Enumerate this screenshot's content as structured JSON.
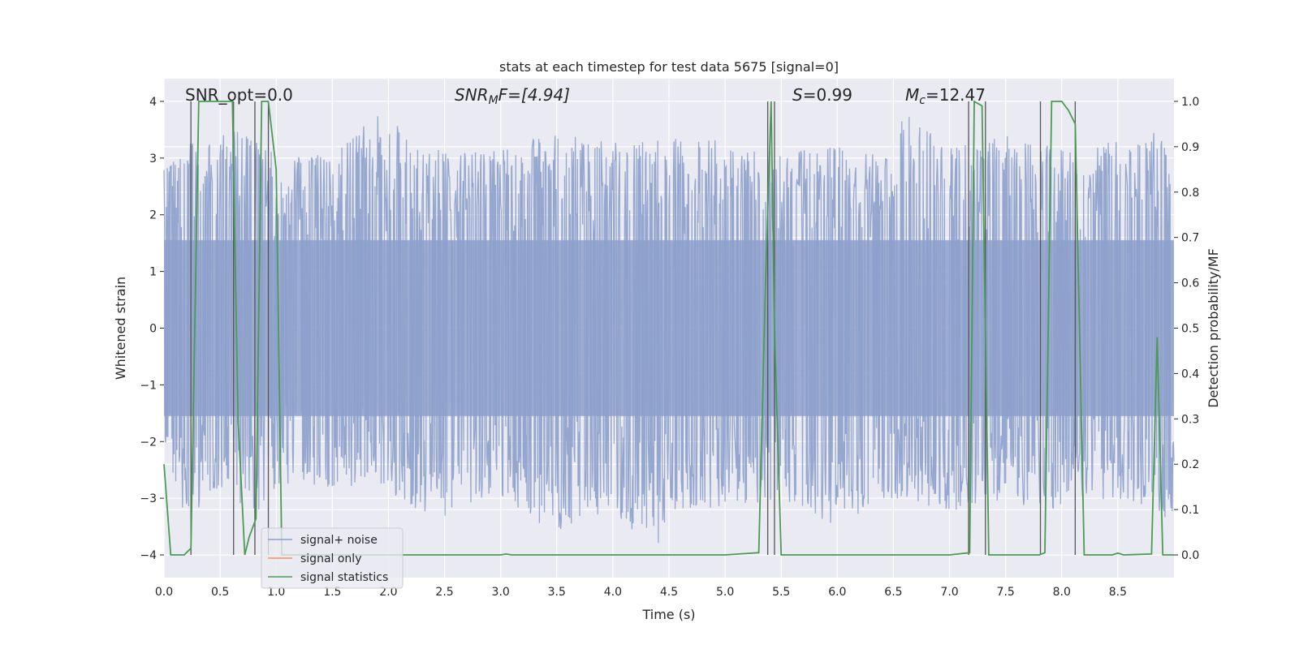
{
  "chart_data": {
    "type": "line",
    "title": "stats at each timestep for test data 5675 [signal=0]",
    "xlabel": "Time (s)",
    "ylabel": "Whitened strain",
    "y2label": "Detection probability/MF",
    "xlim": [
      0,
      9.0
    ],
    "ylim": [
      -4.4,
      4.4
    ],
    "y2lim": [
      -0.05,
      1.05
    ],
    "xticks": [
      "0.0",
      "0.5",
      "1.0",
      "1.5",
      "2.0",
      "2.5",
      "3.0",
      "3.5",
      "4.0",
      "4.5",
      "5.0",
      "5.5",
      "6.0",
      "6.5",
      "7.0",
      "7.5",
      "8.0",
      "8.5"
    ],
    "xtick_values": [
      0,
      0.5,
      1,
      1.5,
      2,
      2.5,
      3,
      3.5,
      4,
      4.5,
      5,
      5.5,
      6,
      6.5,
      7,
      7.5,
      8,
      8.5
    ],
    "yticks": [
      "−4",
      "−3",
      "−2",
      "−1",
      "0",
      "1",
      "2",
      "3",
      "4"
    ],
    "ytick_values": [
      -4,
      -3,
      -2,
      -1,
      0,
      1,
      2,
      3,
      4
    ],
    "y2ticks": [
      "0.0",
      "0.1",
      "0.2",
      "0.3",
      "0.4",
      "0.5",
      "0.6",
      "0.7",
      "0.8",
      "0.9",
      "1.0"
    ],
    "y2tick_values": [
      0,
      0.1,
      0.2,
      0.3,
      0.4,
      0.5,
      0.6,
      0.7,
      0.8,
      0.9,
      1.0
    ],
    "grid": true,
    "legend_position": "lower-left",
    "annotations": {
      "snr_opt": "SNR_opt=0.0",
      "snr_mf_prefix": "SNR",
      "snr_mf_sub": "M",
      "snr_mf_suffix": "F=[4.94]",
      "s_var": "S",
      "s_value": "=0.99",
      "mc_var": "M",
      "mc_sub": "c",
      "mc_value": "=12.47"
    },
    "series": [
      {
        "name": "signal+ noise",
        "color": "#8da0cb",
        "style": "dense-noise",
        "description_note": "whitened strain noise, envelope shown",
        "envelope_upper": [
          [
            0.0,
            2.8
          ],
          [
            0.25,
            3.3
          ],
          [
            0.5,
            3.4
          ],
          [
            0.75,
            3.6
          ],
          [
            1.0,
            3.0
          ],
          [
            1.5,
            3.1
          ],
          [
            1.9,
            3.8
          ],
          [
            2.5,
            3.1
          ],
          [
            3.0,
            3.2
          ],
          [
            3.5,
            3.5
          ],
          [
            4.0,
            3.3
          ],
          [
            4.5,
            3.4
          ],
          [
            5.0,
            3.3
          ],
          [
            5.5,
            3.1
          ],
          [
            6.0,
            3.2
          ],
          [
            6.5,
            3.0
          ],
          [
            6.6,
            4.0
          ],
          [
            7.0,
            3.2
          ],
          [
            7.5,
            3.4
          ],
          [
            8.0,
            3.2
          ],
          [
            8.5,
            3.3
          ],
          [
            8.9,
            3.5
          ],
          [
            9.0,
            3.0
          ]
        ],
        "envelope_lower": [
          [
            0.0,
            -2.4
          ],
          [
            0.2,
            -3.4
          ],
          [
            0.5,
            -2.8
          ],
          [
            0.8,
            -3.3
          ],
          [
            1.0,
            -2.9
          ],
          [
            1.5,
            -2.8
          ],
          [
            2.0,
            -2.9
          ],
          [
            2.4,
            -3.4
          ],
          [
            2.9,
            -3.0
          ],
          [
            3.5,
            -3.6
          ],
          [
            4.0,
            -3.3
          ],
          [
            4.4,
            -3.9
          ],
          [
            4.5,
            -3.2
          ],
          [
            5.0,
            -3.2
          ],
          [
            5.5,
            -3.0
          ],
          [
            5.95,
            -3.5
          ],
          [
            6.5,
            -3.0
          ],
          [
            7.0,
            -3.3
          ],
          [
            7.5,
            -3.1
          ],
          [
            8.0,
            -3.2
          ],
          [
            8.5,
            -3.0
          ],
          [
            9.0,
            -3.4
          ]
        ]
      },
      {
        "name": "signal only",
        "color": "#fc8d62",
        "x": [],
        "y": []
      },
      {
        "name": "signal statistics",
        "color": "#4c9a56",
        "axis": "right",
        "x": [
          0.0,
          0.06,
          0.18,
          0.24,
          0.31,
          0.46,
          0.61,
          0.66,
          0.72,
          0.76,
          0.82,
          0.87,
          0.93,
          1.0,
          1.05,
          1.1,
          1.5,
          2.0,
          2.5,
          3.0,
          3.05,
          3.1,
          3.5,
          4.0,
          4.5,
          5.0,
          5.3,
          5.36,
          5.41,
          5.44,
          5.5,
          5.56,
          6.0,
          6.5,
          7.0,
          7.18,
          7.22,
          7.29,
          7.35,
          7.4,
          7.5,
          7.8,
          7.85,
          7.91,
          8.0,
          8.06,
          8.12,
          8.2,
          8.26,
          8.3,
          8.45,
          8.5,
          8.55,
          8.8,
          8.85,
          8.9,
          8.95,
          9.0
        ],
        "y": [
          0.2,
          0.0,
          0.0,
          0.015,
          1.0,
          1.0,
          1.0,
          0.3,
          0.0,
          0.04,
          0.08,
          1.0,
          1.0,
          0.85,
          0.0,
          0.0,
          0.0,
          0.0,
          0.0,
          0.0,
          0.002,
          0.0,
          0.0,
          0.0,
          0.0,
          0.0,
          0.005,
          0.6,
          1.0,
          0.5,
          0.0,
          0.0,
          0.0,
          0.0,
          0.0,
          0.005,
          1.0,
          0.99,
          0.0,
          0.0,
          0.0,
          0.0,
          0.005,
          1.0,
          1.0,
          0.98,
          0.95,
          0.0,
          0.0,
          0.0,
          0.0,
          0.004,
          0.0,
          0.002,
          0.48,
          0.0,
          0.0,
          0.0
        ]
      }
    ],
    "vertical_lines_x": [
      0.24,
      0.62,
      0.81,
      0.93,
      5.38,
      5.44,
      7.17,
      7.32,
      7.81,
      8.12
    ]
  }
}
